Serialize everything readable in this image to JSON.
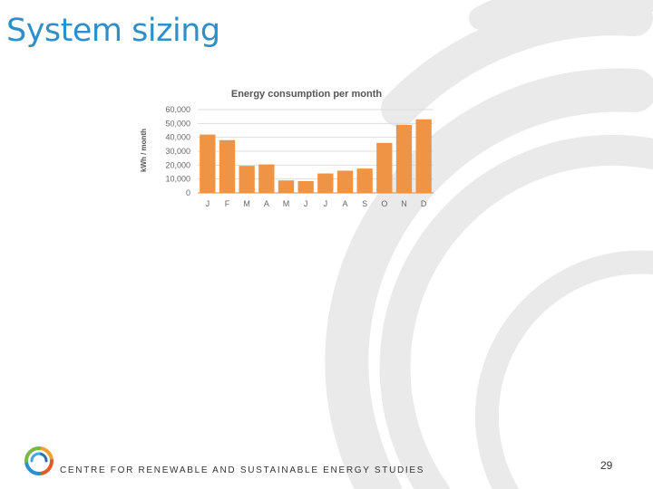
{
  "slide": {
    "title": "System sizing",
    "page_number": "29",
    "organization": "CENTRE FOR RENEWABLE AND SUSTAINABLE ENERGY STUDIES"
  },
  "colors": {
    "title": "#2f8fc8",
    "bar": "#ef9445",
    "watermark": "#eaeaea"
  },
  "chart_data": {
    "type": "bar",
    "title": "Energy consumption per month",
    "xlabel": "",
    "ylabel": "kWh / month",
    "categories": [
      "J",
      "F",
      "M",
      "A",
      "M",
      "J",
      "J",
      "A",
      "S",
      "O",
      "N",
      "D"
    ],
    "values": [
      42000,
      38000,
      19500,
      20500,
      9000,
      8500,
      14000,
      16000,
      17500,
      36000,
      49000,
      53000
    ],
    "ylim": [
      0,
      60000
    ],
    "yticks": [
      0,
      10000,
      20000,
      30000,
      40000,
      50000,
      60000
    ],
    "ytick_labels": [
      "0",
      "10,000",
      "20,000",
      "30,000",
      "40,000",
      "50,000",
      "60,000"
    ],
    "grid": true,
    "legend": "none"
  }
}
